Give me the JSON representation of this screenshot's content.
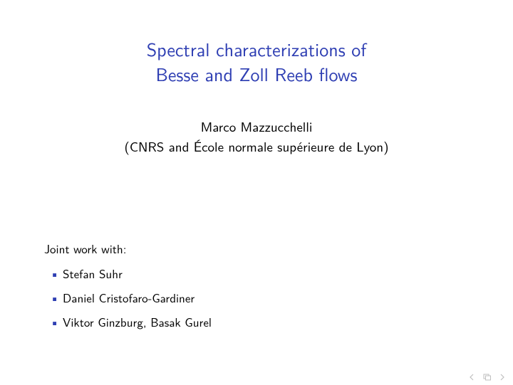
{
  "title": {
    "line1": "Spectral characterizations of",
    "line2": "Besse and Zoll Reeb flows",
    "color": "#2f3fb3",
    "fontsize": 26
  },
  "author": {
    "name": "Marco Mazzucchelli",
    "affiliation": "(CNRS and École normale supérieure de Lyon)",
    "fontsize": 19,
    "color": "#000000"
  },
  "joint": {
    "heading": "Joint work with:",
    "collaborators": [
      "Stefan Suhr",
      "Daniel Cristofaro-Gardiner",
      "Viktor Ginzburg, Basak Gurel"
    ],
    "bullet_color": "#2f3fb3",
    "fontsize": 17
  },
  "nav": {
    "icon_color": "#bfbfbf"
  },
  "background_color": "#ffffff"
}
